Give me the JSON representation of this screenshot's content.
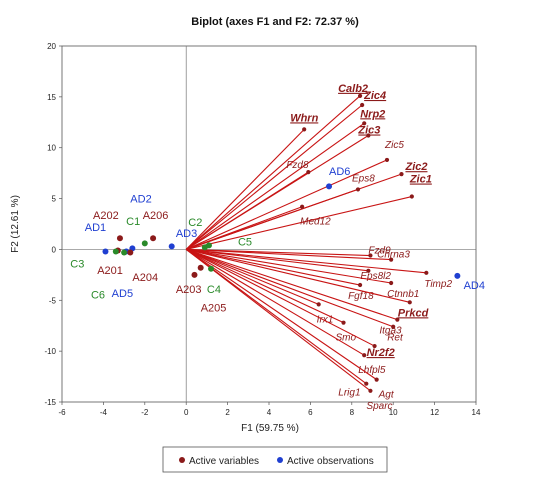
{
  "chart_data": {
    "type": "scatter",
    "title": "Biplot (axes F1 and F2: 72.37 %)",
    "xlabel": "F1 (59.75 %)",
    "ylabel": "F2 (12.61 %)",
    "xlim": [
      -6,
      14
    ],
    "ylim": [
      -15,
      20
    ],
    "xticks": [
      -6,
      -4,
      -2,
      0,
      2,
      4,
      6,
      8,
      10,
      12,
      14
    ],
    "yticks": [
      -15,
      -10,
      -5,
      0,
      5,
      10,
      15,
      20
    ],
    "grid": false,
    "legend": {
      "position": "bottom",
      "items": [
        {
          "label": "Active variables",
          "color": "#8b1a1a"
        },
        {
          "label": "Active observations",
          "color": "#1f3fd1"
        }
      ]
    },
    "variables": [
      {
        "name": "Calb2",
        "x": 8.4,
        "y": 15.1,
        "emph": true
      },
      {
        "name": "Zic4",
        "x": 8.5,
        "y": 14.2,
        "emph": true
      },
      {
        "name": "Nrp2",
        "x": 8.6,
        "y": 12.4,
        "emph": true
      },
      {
        "name": "Zic3",
        "x": 8.8,
        "y": 11.2,
        "emph": true
      },
      {
        "name": "Whrn",
        "x": 5.7,
        "y": 11.8,
        "emph": true
      },
      {
        "name": "Fzd8",
        "x": 5.9,
        "y": 7.6,
        "emph": false
      },
      {
        "name": "Zic5",
        "x": 9.7,
        "y": 8.8,
        "emph": false
      },
      {
        "name": "Zic2",
        "x": 10.4,
        "y": 7.4,
        "emph": true
      },
      {
        "name": "Eps8",
        "x": 8.3,
        "y": 5.9,
        "emph": false
      },
      {
        "name": "Zic1",
        "x": 10.9,
        "y": 5.2,
        "emph": true
      },
      {
        "name": "Med12",
        "x": 5.6,
        "y": 4.2,
        "emph": false
      },
      {
        "name": "Fzd9",
        "x": 8.9,
        "y": -0.6,
        "emph": false
      },
      {
        "name": "Chrna3",
        "x": 9.9,
        "y": -1.0,
        "emph": false
      },
      {
        "name": "Eps8l2",
        "x": 8.8,
        "y": -2.1,
        "emph": false
      },
      {
        "name": "Timp2",
        "x": 11.6,
        "y": -2.3,
        "emph": false
      },
      {
        "name": "Ctnnb1",
        "x": 9.9,
        "y": -3.3,
        "emph": false
      },
      {
        "name": "Fgf18",
        "x": 8.4,
        "y": -3.5,
        "emph": false
      },
      {
        "name": "Prkcd",
        "x": 10.8,
        "y": -5.2,
        "emph": true
      },
      {
        "name": "Itga3",
        "x": 10.2,
        "y": -6.9,
        "emph": false
      },
      {
        "name": "Irx1",
        "x": 6.4,
        "y": -5.4,
        "emph": false
      },
      {
        "name": "Ret",
        "x": 10.0,
        "y": -7.6,
        "emph": false
      },
      {
        "name": "Smo",
        "x": 7.6,
        "y": -7.2,
        "emph": false
      },
      {
        "name": "Nr2f2",
        "x": 9.1,
        "y": -9.5,
        "emph": true
      },
      {
        "name": "Lhfpl5",
        "x": 8.6,
        "y": -10.4,
        "emph": false
      },
      {
        "name": "Agt",
        "x": 9.2,
        "y": -12.8,
        "emph": false
      },
      {
        "name": "Lrig1",
        "x": 8.7,
        "y": -13.2,
        "emph": false
      },
      {
        "name": "Sparc",
        "x": 8.9,
        "y": -13.9,
        "emph": false
      }
    ],
    "observations": [
      {
        "name": "AD1",
        "x": -3.9,
        "y": -0.2,
        "color": "#1f3fd1"
      },
      {
        "name": "AD2",
        "x": -2.6,
        "y": 0.1,
        "color": "#1f3fd1"
      },
      {
        "name": "AD3",
        "x": -0.7,
        "y": 0.3,
        "color": "#1f3fd1"
      },
      {
        "name": "AD4",
        "x": 13.1,
        "y": -2.6,
        "color": "#1f3fd1"
      },
      {
        "name": "AD5",
        "x": -2.9,
        "y": -0.2,
        "color": "#1f3fd1"
      },
      {
        "name": "AD6",
        "x": 6.9,
        "y": 6.2,
        "color": "#1f3fd1"
      },
      {
        "name": "A201",
        "x": -3.3,
        "y": -0.1,
        "color": "#8b1a1a"
      },
      {
        "name": "A202",
        "x": -3.2,
        "y": 1.1,
        "color": "#8b1a1a"
      },
      {
        "name": "A203",
        "x": 0.4,
        "y": -2.5,
        "color": "#8b1a1a"
      },
      {
        "name": "A204",
        "x": -2.7,
        "y": -0.3,
        "color": "#8b1a1a"
      },
      {
        "name": "A205",
        "x": 0.7,
        "y": -1.8,
        "color": "#8b1a1a"
      },
      {
        "name": "A206",
        "x": -1.6,
        "y": 1.1,
        "color": "#8b1a1a"
      },
      {
        "name": "C1",
        "x": -2.0,
        "y": 0.6,
        "color": "#2a8a2a"
      },
      {
        "name": "C2",
        "x": 0.9,
        "y": 0.2,
        "color": "#2a8a2a"
      },
      {
        "name": "C3",
        "x": -3.4,
        "y": -0.2,
        "color": "#2a8a2a"
      },
      {
        "name": "C4",
        "x": 1.2,
        "y": -1.9,
        "color": "#2a8a2a"
      },
      {
        "name": "C5",
        "x": 1.1,
        "y": 0.4,
        "color": "#2a8a2a"
      },
      {
        "name": "C6",
        "x": -3.0,
        "y": -0.3,
        "color": "#2a8a2a"
      }
    ],
    "observation_labels": [
      {
        "name": "AD1",
        "color": "#1f3fd1",
        "lx": -4.9,
        "ly": 1.8
      },
      {
        "name": "AD2",
        "color": "#1f3fd1",
        "lx": -2.7,
        "ly": 4.6
      },
      {
        "name": "AD3",
        "color": "#1f3fd1",
        "lx": -0.5,
        "ly": 1.2
      },
      {
        "name": "AD4",
        "color": "#1f3fd1",
        "lx": 13.4,
        "ly": -3.9
      },
      {
        "name": "AD5",
        "color": "#1f3fd1",
        "lx": -3.6,
        "ly": -4.7
      },
      {
        "name": "AD6",
        "color": "#1f3fd1",
        "lx": 6.9,
        "ly": 7.3
      },
      {
        "name": "A201",
        "color": "#8b1a1a",
        "lx": -4.3,
        "ly": -2.4
      },
      {
        "name": "A202",
        "color": "#8b1a1a",
        "lx": -4.5,
        "ly": 3.0
      },
      {
        "name": "A203",
        "color": "#8b1a1a",
        "lx": -0.5,
        "ly": -4.3
      },
      {
        "name": "A204",
        "color": "#8b1a1a",
        "lx": -2.6,
        "ly": -3.1
      },
      {
        "name": "A205",
        "color": "#8b1a1a",
        "lx": 0.7,
        "ly": -6.1
      },
      {
        "name": "A206",
        "color": "#8b1a1a",
        "lx": -2.1,
        "ly": 3.0
      },
      {
        "name": "C1",
        "color": "#2a8a2a",
        "lx": -2.9,
        "ly": 2.4
      },
      {
        "name": "C2",
        "color": "#2a8a2a",
        "lx": 0.1,
        "ly": 2.3
      },
      {
        "name": "C3",
        "color": "#2a8a2a",
        "lx": -5.6,
        "ly": -1.8
      },
      {
        "name": "C4",
        "color": "#2a8a2a",
        "lx": 1.0,
        "ly": -4.3
      },
      {
        "name": "C5",
        "color": "#2a8a2a",
        "lx": 2.5,
        "ly": 0.4
      },
      {
        "name": "C6",
        "color": "#2a8a2a",
        "lx": -4.6,
        "ly": -4.8
      }
    ]
  }
}
